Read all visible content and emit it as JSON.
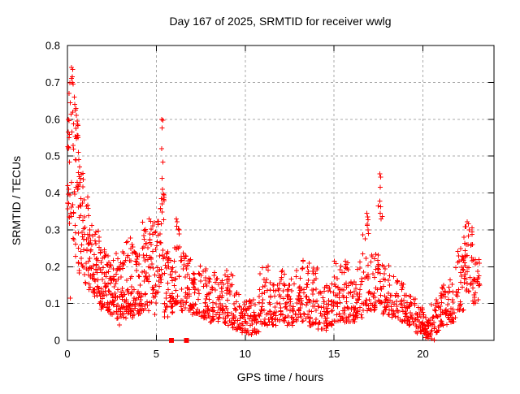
{
  "chart_data": {
    "type": "scatter",
    "title": "Day 167 of 2025, SRMTID for receiver wwlg",
    "xlabel": "GPS time / hours",
    "ylabel": "SRMTID / TECUs",
    "xlim": [
      0,
      24
    ],
    "ylim": [
      0,
      0.8
    ],
    "grid": true,
    "legend": "none",
    "xticks": {
      "values": [
        0,
        5,
        10,
        15,
        20
      ],
      "labels": [
        "0",
        "5",
        "10",
        "15",
        "20"
      ]
    },
    "yticks": {
      "values": [
        0,
        0.1,
        0.2,
        0.3,
        0.4,
        0.5,
        0.6,
        0.7,
        0.8
      ],
      "labels": [
        "0",
        "0.1",
        "0.2",
        "0.3",
        "0.4",
        "0.5",
        "0.6",
        "0.7",
        "0.8"
      ]
    },
    "marker_color": "#ff0000",
    "series": [
      {
        "name": "srmtid",
        "marker": "plus",
        "color": "#ff0000",
        "seed": 167,
        "points": [
          [
            0.22,
            0.74
          ],
          [
            0.3,
            0.735
          ],
          [
            0.27,
            0.7
          ],
          [
            0.33,
            0.695
          ],
          [
            0.1,
            0.67
          ],
          [
            0.38,
            0.66
          ],
          [
            0.15,
            0.645
          ],
          [
            0.42,
            0.64
          ],
          [
            0.45,
            0.625
          ],
          [
            0.5,
            0.61
          ],
          [
            0.05,
            0.6
          ],
          [
            0.55,
            0.595
          ],
          [
            0.05,
            0.565
          ],
          [
            0.08,
            0.55
          ],
          [
            0.6,
            0.55
          ],
          [
            0.05,
            0.52
          ],
          [
            0.62,
            0.51
          ],
          [
            0.65,
            0.49
          ],
          [
            0.68,
            0.47
          ],
          [
            0.72,
            0.44
          ],
          [
            0.15,
            0.115
          ],
          [
            1.9,
            0.085
          ],
          [
            2.92,
            0.042
          ],
          [
            5.3,
            0.6
          ],
          [
            5.36,
            0.597
          ],
          [
            5.33,
            0.576
          ],
          [
            5.3,
            0.52
          ],
          [
            5.36,
            0.484
          ],
          [
            5.32,
            0.44
          ],
          [
            5.35,
            0.41
          ],
          [
            5.29,
            0.385
          ],
          [
            5.33,
            0.37
          ],
          [
            6.12,
            0.33
          ],
          [
            6.18,
            0.322
          ],
          [
            6.15,
            0.31
          ],
          [
            10.2,
            0.018
          ],
          [
            10.35,
            0.015
          ],
          [
            14.55,
            0.028
          ],
          [
            16.85,
            0.345
          ],
          [
            16.9,
            0.335
          ],
          [
            16.87,
            0.315
          ],
          [
            16.92,
            0.3
          ],
          [
            17.58,
            0.452
          ],
          [
            17.63,
            0.443
          ],
          [
            17.6,
            0.415
          ],
          [
            17.57,
            0.378
          ],
          [
            17.62,
            0.362
          ],
          [
            17.6,
            0.345
          ],
          [
            17.64,
            0.33
          ],
          [
            20.15,
            0.008
          ],
          [
            20.3,
            0.006
          ],
          [
            20.5,
            0.004
          ],
          [
            20.63,
            0.001
          ],
          [
            22.48,
            0.322
          ],
          [
            22.55,
            0.316
          ],
          [
            22.42,
            0.308
          ],
          [
            22.6,
            0.3
          ],
          [
            23.05,
            0.21
          ],
          [
            23.15,
            0.175
          ],
          [
            23.2,
            0.15
          ]
        ],
        "bin_format": [
          "x_start",
          "x_end",
          "count",
          "y_min",
          "y_max",
          "cluster_exp"
        ],
        "density_bins": [
          [
            0.0,
            0.3,
            26,
            0.3,
            0.72,
            0.9
          ],
          [
            0.3,
            0.6,
            30,
            0.22,
            0.66,
            1.2
          ],
          [
            0.6,
            0.9,
            30,
            0.18,
            0.46,
            1.3
          ],
          [
            0.9,
            1.2,
            28,
            0.15,
            0.4,
            1.4
          ],
          [
            1.2,
            1.5,
            28,
            0.13,
            0.34,
            1.4
          ],
          [
            1.5,
            1.8,
            30,
            0.12,
            0.3,
            1.4
          ],
          [
            1.8,
            2.1,
            30,
            0.09,
            0.28,
            1.5
          ],
          [
            2.1,
            2.4,
            30,
            0.08,
            0.24,
            1.5
          ],
          [
            2.4,
            2.7,
            30,
            0.07,
            0.22,
            1.5
          ],
          [
            2.7,
            3.0,
            30,
            0.05,
            0.24,
            1.6
          ],
          [
            3.0,
            3.3,
            30,
            0.06,
            0.25,
            1.6
          ],
          [
            3.3,
            3.6,
            30,
            0.07,
            0.28,
            1.6
          ],
          [
            3.6,
            3.9,
            30,
            0.06,
            0.26,
            1.6
          ],
          [
            3.9,
            4.2,
            30,
            0.07,
            0.24,
            1.6
          ],
          [
            4.2,
            4.6,
            36,
            0.08,
            0.33,
            1.4
          ],
          [
            4.6,
            5.0,
            34,
            0.07,
            0.33,
            1.1
          ],
          [
            5.0,
            5.2,
            16,
            0.13,
            0.35,
            1.3
          ],
          [
            5.2,
            5.45,
            22,
            0.15,
            0.45,
            1.5
          ],
          [
            5.45,
            5.7,
            22,
            0.06,
            0.26,
            1.5
          ],
          [
            5.7,
            6.0,
            24,
            0.07,
            0.24,
            1.5
          ],
          [
            6.0,
            6.35,
            26,
            0.1,
            0.33,
            1.6
          ],
          [
            6.35,
            6.7,
            26,
            0.08,
            0.25,
            1.5
          ],
          [
            6.7,
            7.0,
            26,
            0.08,
            0.22,
            1.5
          ],
          [
            7.0,
            7.4,
            30,
            0.07,
            0.2,
            1.5
          ],
          [
            7.4,
            7.8,
            30,
            0.06,
            0.21,
            1.6
          ],
          [
            7.8,
            8.3,
            36,
            0.05,
            0.21,
            1.6
          ],
          [
            8.3,
            8.8,
            36,
            0.05,
            0.17,
            1.5
          ],
          [
            8.8,
            9.3,
            36,
            0.04,
            0.19,
            1.7
          ],
          [
            9.3,
            9.8,
            36,
            0.03,
            0.13,
            1.5
          ],
          [
            9.8,
            10.3,
            36,
            0.02,
            0.11,
            1.5
          ],
          [
            10.3,
            10.8,
            36,
            0.02,
            0.12,
            1.5
          ],
          [
            10.8,
            11.3,
            34,
            0.04,
            0.21,
            1.7
          ],
          [
            11.3,
            11.8,
            34,
            0.04,
            0.16,
            1.5
          ],
          [
            11.8,
            12.3,
            34,
            0.05,
            0.19,
            1.6
          ],
          [
            12.3,
            12.8,
            34,
            0.04,
            0.17,
            1.5
          ],
          [
            12.8,
            13.2,
            30,
            0.05,
            0.19,
            1.5
          ],
          [
            13.2,
            13.6,
            30,
            0.05,
            0.22,
            1.6
          ],
          [
            13.6,
            14.1,
            34,
            0.04,
            0.21,
            1.6
          ],
          [
            14.1,
            14.6,
            34,
            0.03,
            0.15,
            1.5
          ],
          [
            14.6,
            15.0,
            30,
            0.04,
            0.16,
            1.5
          ],
          [
            15.0,
            15.4,
            30,
            0.05,
            0.22,
            1.6
          ],
          [
            15.4,
            15.8,
            30,
            0.05,
            0.22,
            1.6
          ],
          [
            15.8,
            16.2,
            30,
            0.05,
            0.18,
            1.5
          ],
          [
            16.2,
            16.6,
            30,
            0.06,
            0.22,
            1.5
          ],
          [
            16.6,
            17.0,
            28,
            0.08,
            0.33,
            1.8
          ],
          [
            17.0,
            17.4,
            26,
            0.08,
            0.25,
            1.6
          ],
          [
            17.4,
            17.75,
            22,
            0.1,
            0.38,
            1.7
          ],
          [
            17.75,
            18.1,
            26,
            0.07,
            0.22,
            1.5
          ],
          [
            18.1,
            18.6,
            32,
            0.06,
            0.18,
            1.4
          ],
          [
            18.6,
            19.1,
            32,
            0.05,
            0.16,
            1.4
          ],
          [
            19.1,
            19.6,
            32,
            0.04,
            0.13,
            1.4
          ],
          [
            19.6,
            20.0,
            30,
            0.02,
            0.09,
            1.3
          ],
          [
            20.0,
            20.45,
            32,
            0.01,
            0.07,
            1.3
          ],
          [
            20.45,
            20.9,
            30,
            0.02,
            0.11,
            1.4
          ],
          [
            20.9,
            21.4,
            32,
            0.04,
            0.15,
            1.4
          ],
          [
            21.4,
            21.9,
            32,
            0.05,
            0.2,
            1.4
          ],
          [
            21.9,
            22.3,
            30,
            0.08,
            0.26,
            1.3
          ],
          [
            22.3,
            22.8,
            36,
            0.13,
            0.31,
            0.9
          ],
          [
            22.8,
            23.2,
            26,
            0.1,
            0.23,
            1.2
          ]
        ]
      },
      {
        "name": "zero-markers",
        "marker": "square",
        "color": "#ff0000",
        "points": [
          [
            5.85,
            0
          ],
          [
            6.7,
            0
          ]
        ]
      }
    ]
  }
}
